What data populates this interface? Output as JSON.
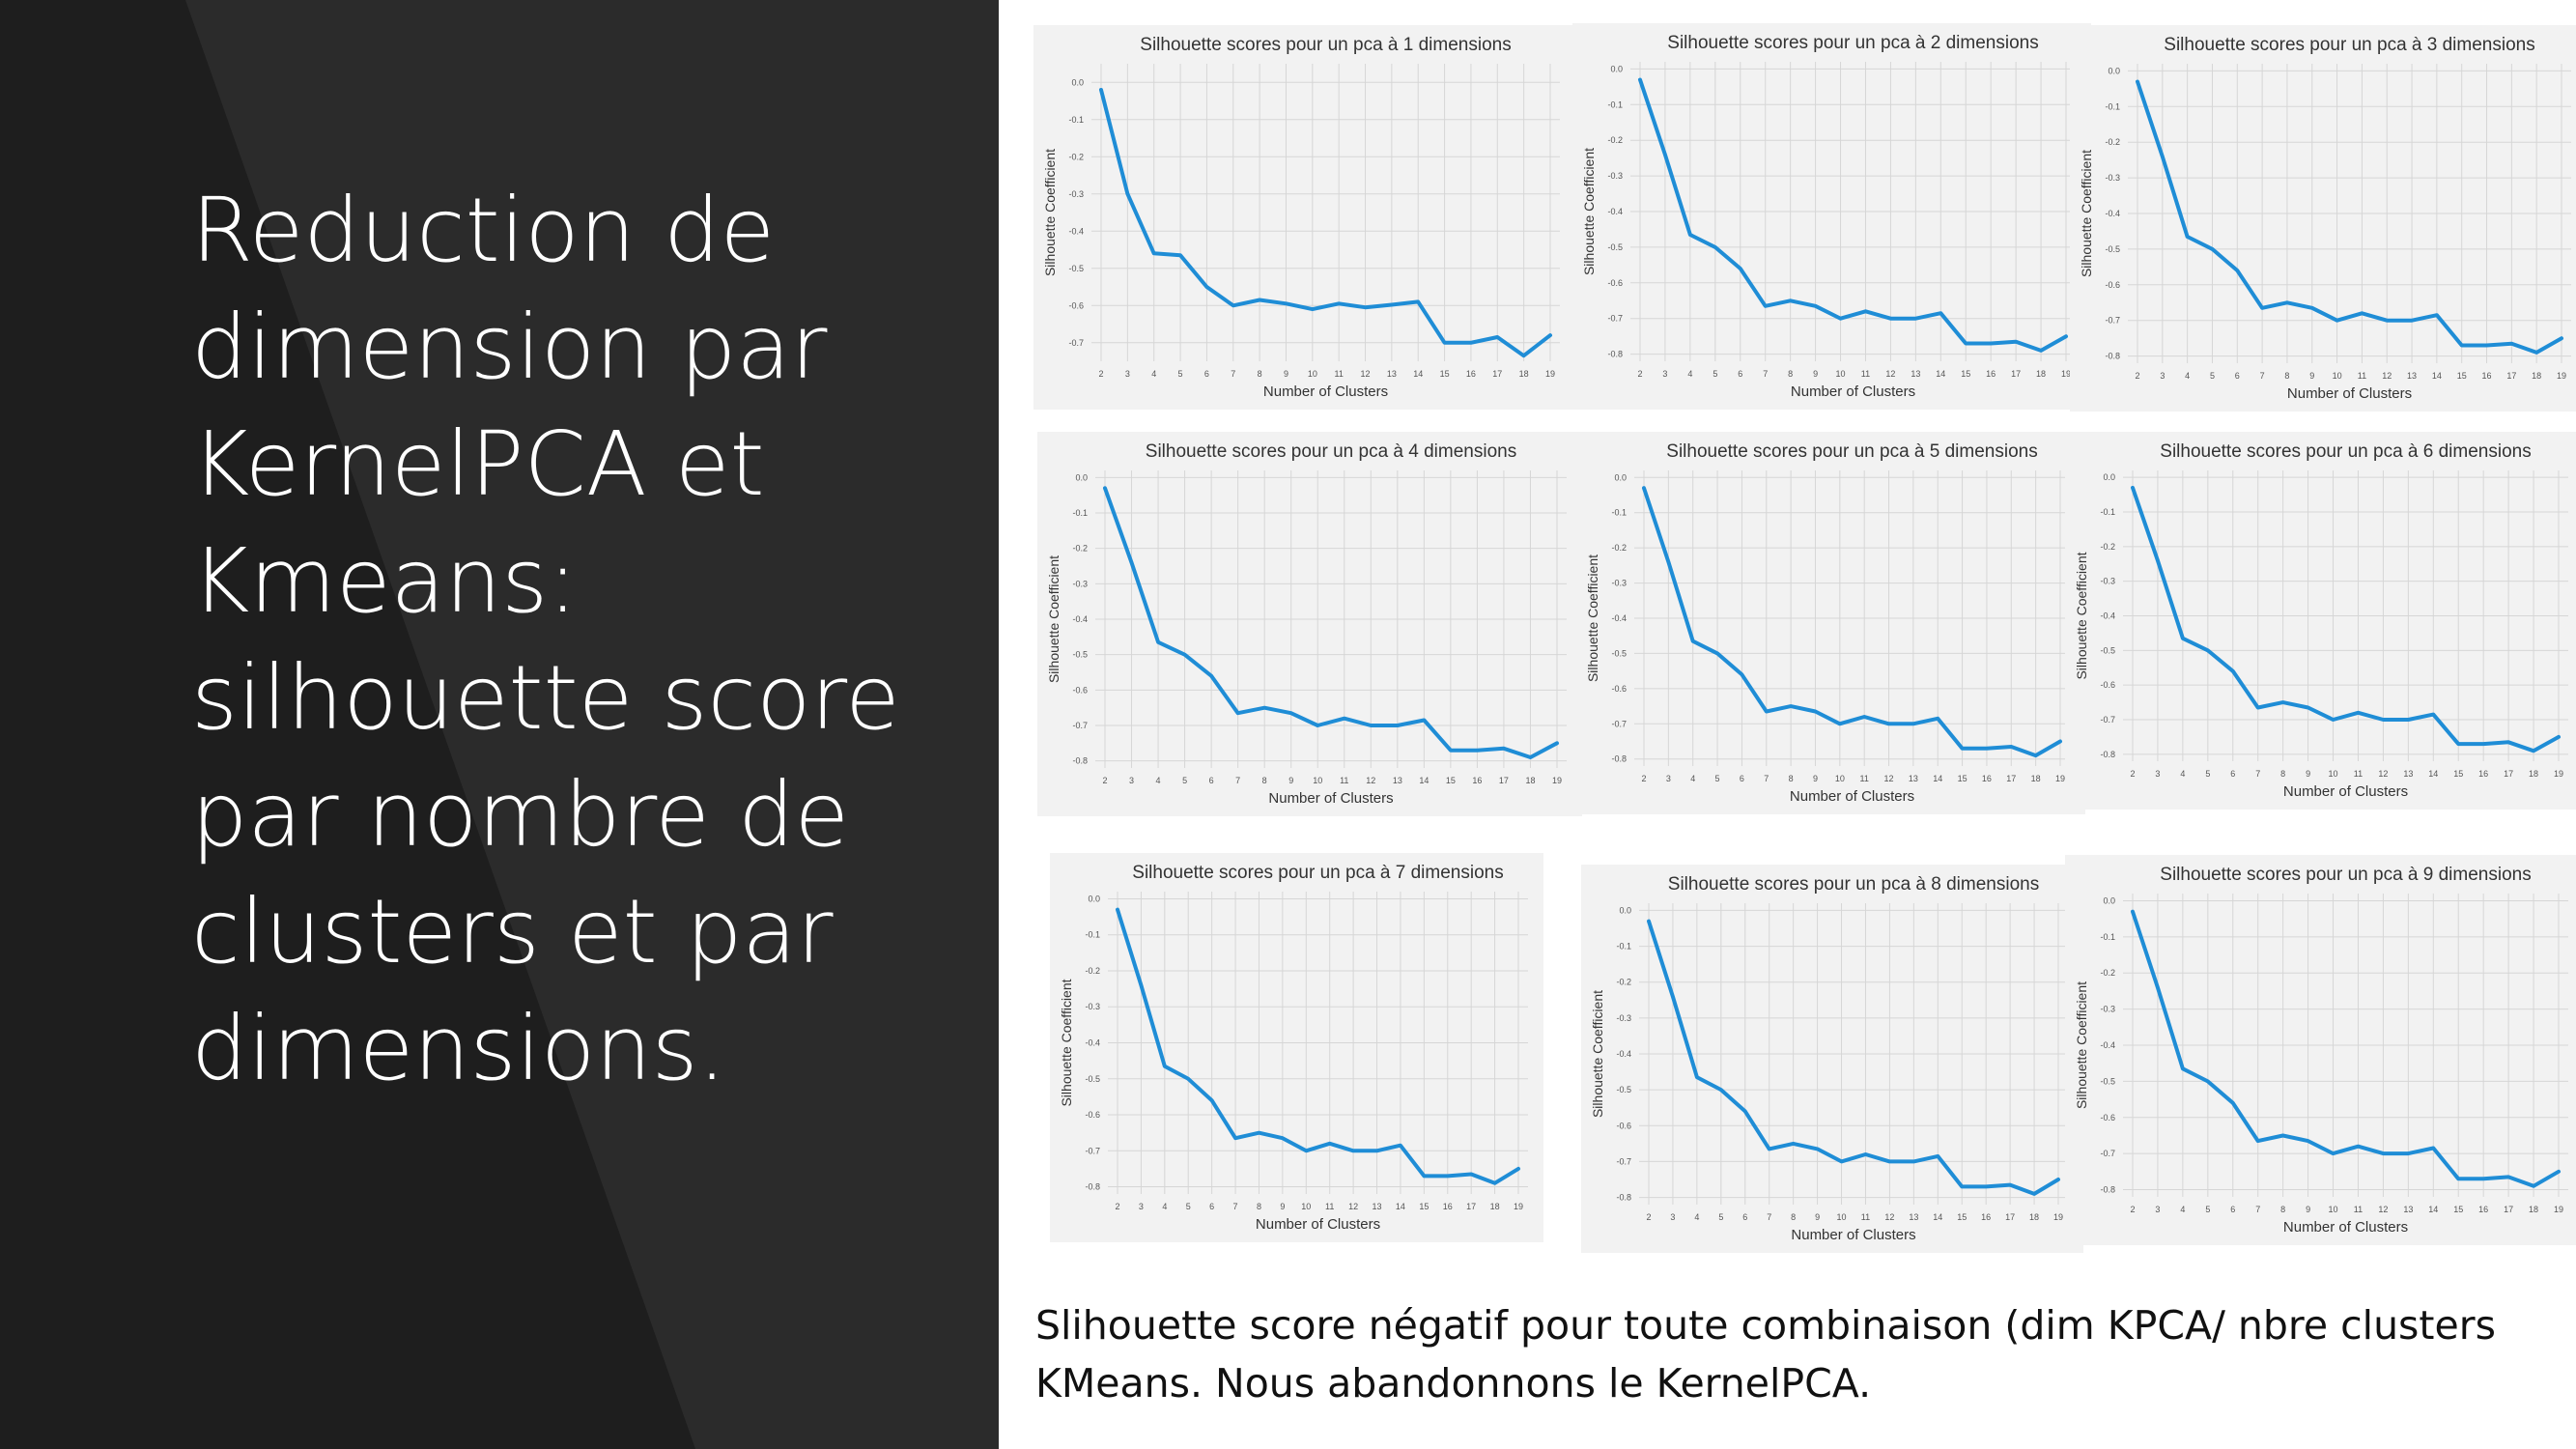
{
  "slide": {
    "title": "Reduction de dimension par KernelPCA et Kmeans: silhouette score par nombre de clusters et par dimensions.",
    "caption": "Slihouette score négatif pour toute combinaison (dim KPCA/ nbre clusters KMeans. Nous abandonnons le KernelPCA.",
    "colors": {
      "left_background": "#1e1e1e",
      "diagonal_band": "#2b2b2b",
      "line": "#1f8dd6",
      "plot_background": "#f2f2f2",
      "grid": "#d6d6d6"
    }
  },
  "chart_data": [
    {
      "type": "line",
      "title": "Silhouette scores pour un pca à 1 dimensions",
      "xlabel": "Number of Clusters",
      "ylabel": "Silhouette Coefficient",
      "x": [
        2,
        3,
        4,
        5,
        6,
        7,
        8,
        9,
        10,
        11,
        12,
        13,
        14,
        15,
        16,
        17,
        18,
        19
      ],
      "yticks": [
        "0.0",
        "-0.1",
        "-0.2",
        "-0.3",
        "-0.4",
        "-0.5",
        "-0.6",
        "-0.7"
      ],
      "ylim": [
        -0.75,
        0.05
      ],
      "values": [
        -0.02,
        -0.3,
        -0.46,
        -0.465,
        -0.55,
        -0.6,
        -0.585,
        -0.595,
        -0.61,
        -0.595,
        -0.605,
        -0.598,
        -0.59,
        -0.7,
        -0.7,
        -0.685,
        -0.735,
        -0.68
      ],
      "grid": true
    },
    {
      "type": "line",
      "title": "Silhouette scores pour un pca à 2 dimensions",
      "xlabel": "Number of Clusters",
      "ylabel": "Silhouette Coefficient",
      "x": [
        2,
        3,
        4,
        5,
        6,
        7,
        8,
        9,
        10,
        11,
        12,
        13,
        14,
        15,
        16,
        17,
        18,
        19
      ],
      "yticks": [
        "0.0",
        "-0.1",
        "-0.2",
        "-0.3",
        "-0.4",
        "-0.5",
        "-0.6",
        "-0.7",
        "-0.8"
      ],
      "ylim": [
        -0.82,
        0.02
      ],
      "values": [
        -0.03,
        -0.24,
        -0.465,
        -0.5,
        -0.56,
        -0.665,
        -0.65,
        -0.665,
        -0.7,
        -0.68,
        -0.7,
        -0.7,
        -0.685,
        -0.77,
        -0.77,
        -0.765,
        -0.79,
        -0.75
      ],
      "grid": true
    },
    {
      "type": "line",
      "title": "Silhouette scores pour un pca à 3 dimensions",
      "xlabel": "Number of Clusters",
      "ylabel": "Silhouette Coefficient",
      "x": [
        2,
        3,
        4,
        5,
        6,
        7,
        8,
        9,
        10,
        11,
        12,
        13,
        14,
        15,
        16,
        17,
        18,
        19
      ],
      "yticks": [
        "0.0",
        "-0.1",
        "-0.2",
        "-0.3",
        "-0.4",
        "-0.5",
        "-0.6",
        "-0.7",
        "-0.8"
      ],
      "ylim": [
        -0.82,
        0.02
      ],
      "values": [
        -0.03,
        -0.24,
        -0.465,
        -0.5,
        -0.56,
        -0.665,
        -0.65,
        -0.665,
        -0.7,
        -0.68,
        -0.7,
        -0.7,
        -0.685,
        -0.77,
        -0.77,
        -0.765,
        -0.79,
        -0.75
      ],
      "grid": true
    },
    {
      "type": "line",
      "title": "Silhouette scores pour un pca à 4 dimensions",
      "xlabel": "Number of Clusters",
      "ylabel": "Silhouette Coefficient",
      "x": [
        2,
        3,
        4,
        5,
        6,
        7,
        8,
        9,
        10,
        11,
        12,
        13,
        14,
        15,
        16,
        17,
        18,
        19
      ],
      "yticks": [
        "0.0",
        "-0.1",
        "-0.2",
        "-0.3",
        "-0.4",
        "-0.5",
        "-0.6",
        "-0.7",
        "-0.8"
      ],
      "ylim": [
        -0.82,
        0.02
      ],
      "values": [
        -0.03,
        -0.24,
        -0.465,
        -0.5,
        -0.56,
        -0.665,
        -0.65,
        -0.665,
        -0.7,
        -0.68,
        -0.7,
        -0.7,
        -0.685,
        -0.77,
        -0.77,
        -0.765,
        -0.79,
        -0.75
      ],
      "grid": true
    },
    {
      "type": "line",
      "title": "Silhouette scores pour un pca à 5 dimensions",
      "xlabel": "Number of Clusters",
      "ylabel": "Silhouette Coefficient",
      "x": [
        2,
        3,
        4,
        5,
        6,
        7,
        8,
        9,
        10,
        11,
        12,
        13,
        14,
        15,
        16,
        17,
        18,
        19
      ],
      "yticks": [
        "0.0",
        "-0.1",
        "-0.2",
        "-0.3",
        "-0.4",
        "-0.5",
        "-0.6",
        "-0.7",
        "-0.8"
      ],
      "ylim": [
        -0.82,
        0.02
      ],
      "values": [
        -0.03,
        -0.24,
        -0.465,
        -0.5,
        -0.56,
        -0.665,
        -0.65,
        -0.665,
        -0.7,
        -0.68,
        -0.7,
        -0.7,
        -0.685,
        -0.77,
        -0.77,
        -0.765,
        -0.79,
        -0.75
      ],
      "grid": true
    },
    {
      "type": "line",
      "title": "Silhouette scores pour un pca à 6 dimensions",
      "xlabel": "Number of Clusters",
      "ylabel": "Silhouette Coefficient",
      "x": [
        2,
        3,
        4,
        5,
        6,
        7,
        8,
        9,
        10,
        11,
        12,
        13,
        14,
        15,
        16,
        17,
        18,
        19
      ],
      "yticks": [
        "0.0",
        "-0.1",
        "-0.2",
        "-0.3",
        "-0.4",
        "-0.5",
        "-0.6",
        "-0.7",
        "-0.8"
      ],
      "ylim": [
        -0.82,
        0.02
      ],
      "values": [
        -0.03,
        -0.24,
        -0.465,
        -0.5,
        -0.56,
        -0.665,
        -0.65,
        -0.665,
        -0.7,
        -0.68,
        -0.7,
        -0.7,
        -0.685,
        -0.77,
        -0.77,
        -0.765,
        -0.79,
        -0.75
      ],
      "grid": true
    },
    {
      "type": "line",
      "title": "Silhouette scores pour un pca à 7 dimensions",
      "xlabel": "Number of Clusters",
      "ylabel": "Silhouette Coefficient",
      "x": [
        2,
        3,
        4,
        5,
        6,
        7,
        8,
        9,
        10,
        11,
        12,
        13,
        14,
        15,
        16,
        17,
        18,
        19
      ],
      "yticks": [
        "0.0",
        "-0.1",
        "-0.2",
        "-0.3",
        "-0.4",
        "-0.5",
        "-0.6",
        "-0.7",
        "-0.8"
      ],
      "ylim": [
        -0.82,
        0.02
      ],
      "values": [
        -0.03,
        -0.24,
        -0.465,
        -0.5,
        -0.56,
        -0.665,
        -0.65,
        -0.665,
        -0.7,
        -0.68,
        -0.7,
        -0.7,
        -0.685,
        -0.77,
        -0.77,
        -0.765,
        -0.79,
        -0.75
      ],
      "grid": true
    },
    {
      "type": "line",
      "title": "Silhouette scores pour un pca à 8 dimensions",
      "xlabel": "Number of Clusters",
      "ylabel": "Silhouette Coefficient",
      "x": [
        2,
        3,
        4,
        5,
        6,
        7,
        8,
        9,
        10,
        11,
        12,
        13,
        14,
        15,
        16,
        17,
        18,
        19
      ],
      "yticks": [
        "0.0",
        "-0.1",
        "-0.2",
        "-0.3",
        "-0.4",
        "-0.5",
        "-0.6",
        "-0.7",
        "-0.8"
      ],
      "ylim": [
        -0.82,
        0.02
      ],
      "values": [
        -0.03,
        -0.24,
        -0.465,
        -0.5,
        -0.56,
        -0.665,
        -0.65,
        -0.665,
        -0.7,
        -0.68,
        -0.7,
        -0.7,
        -0.685,
        -0.77,
        -0.77,
        -0.765,
        -0.79,
        -0.75
      ],
      "grid": true
    },
    {
      "type": "line",
      "title": "Silhouette scores pour un pca à 9 dimensions",
      "xlabel": "Number of Clusters",
      "ylabel": "Silhouette Coefficient",
      "x": [
        2,
        3,
        4,
        5,
        6,
        7,
        8,
        9,
        10,
        11,
        12,
        13,
        14,
        15,
        16,
        17,
        18,
        19
      ],
      "yticks": [
        "0.0",
        "-0.1",
        "-0.2",
        "-0.3",
        "-0.4",
        "-0.5",
        "-0.6",
        "-0.7",
        "-0.8"
      ],
      "ylim": [
        -0.82,
        0.02
      ],
      "values": [
        -0.03,
        -0.24,
        -0.465,
        -0.5,
        -0.56,
        -0.665,
        -0.65,
        -0.665,
        -0.7,
        -0.68,
        -0.7,
        -0.7,
        -0.685,
        -0.77,
        -0.77,
        -0.765,
        -0.79,
        -0.75
      ],
      "grid": true
    }
  ]
}
